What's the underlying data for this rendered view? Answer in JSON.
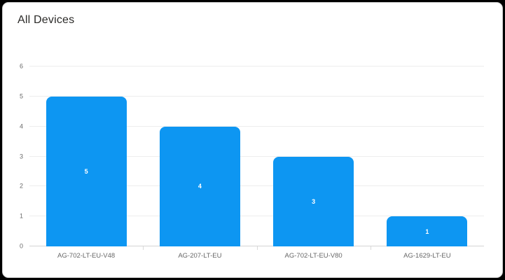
{
  "card": {
    "title": "All Devices"
  },
  "colors": {
    "frame_bg": "#000000",
    "card_bg": "#ffffff",
    "card_border": "#cfcfcf",
    "bar": "#0d96f2",
    "grid": "#ededed",
    "axis": "#d4d4d4",
    "tick_text": "#6a6a6a",
    "category_text": "#666666",
    "title_text": "#2b2a28",
    "value_label_text": "#ffffff"
  },
  "chart_data": {
    "type": "bar",
    "title": "All Devices",
    "categories": [
      "AG-702-LT-EU-V48",
      "AG-207-LT-EU",
      "AG-702-LT-EU-V80",
      "AG-1629-LT-EU"
    ],
    "values": [
      5,
      4,
      3,
      1
    ],
    "xlabel": "",
    "ylabel": "",
    "ylim": [
      0,
      6
    ],
    "yticks": [
      0,
      1,
      2,
      3,
      4,
      5,
      6
    ],
    "grid": true,
    "legend": "none",
    "value_labels": "inside-center",
    "bar_width_fraction": 0.71,
    "bar_color": "#0d96f2"
  }
}
